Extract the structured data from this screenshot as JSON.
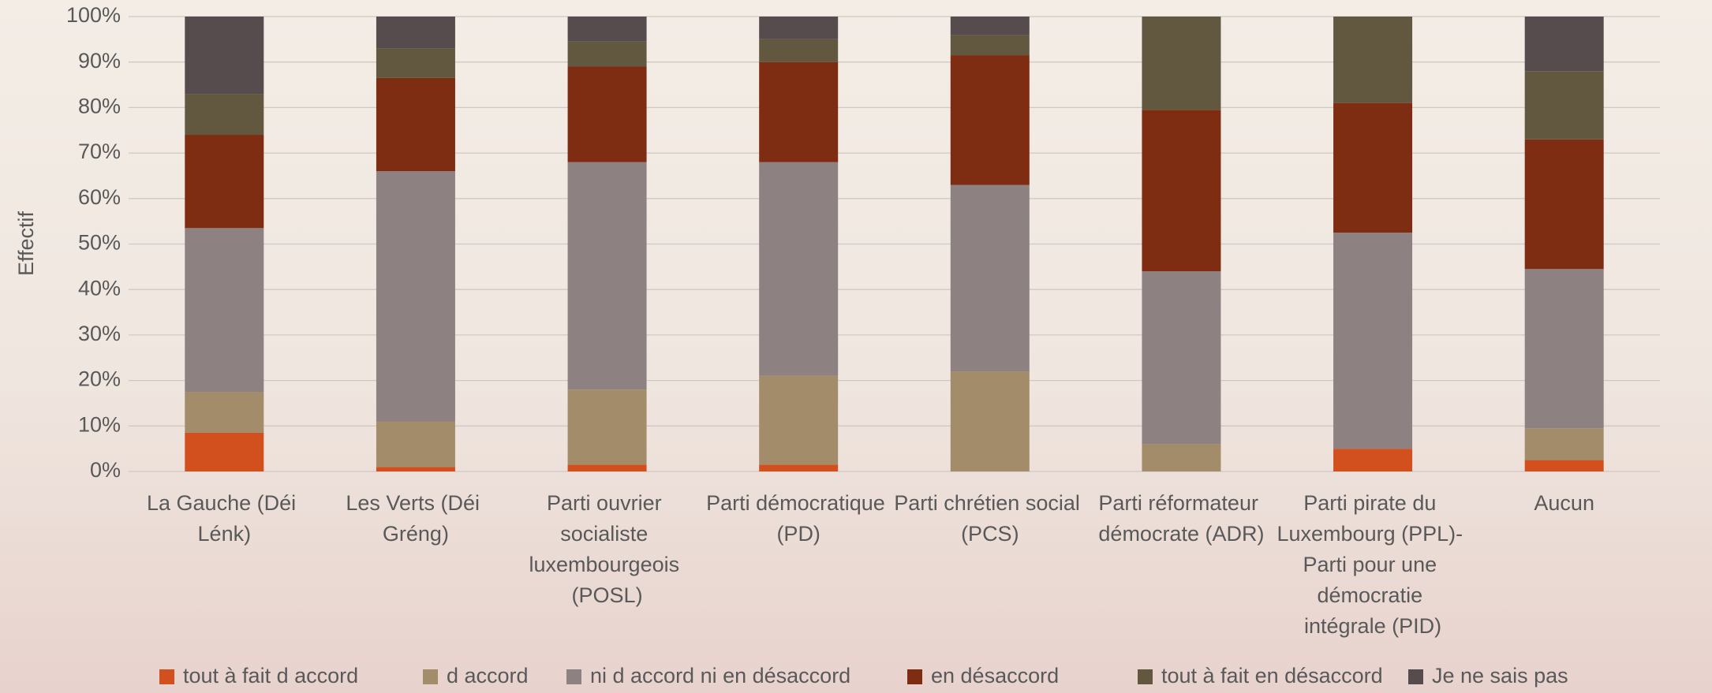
{
  "chart_data": {
    "type": "stacked_bar_100",
    "y_label": "Effectif",
    "categories": [
      "La Gauche (Déi Lénk)",
      "Les Verts (Déi Gréng)",
      "Parti ouvrier socialiste luxembourgeois (POSL)",
      "Parti démocratique (PD)",
      "Parti chrétien social (PCS)",
      "Parti réformateur démocrate (ADR)",
      "Parti pirate du Luxembourg (PPL)- Parti pour une démocratie intégrale (PID)",
      "Aucun"
    ],
    "series": [
      {
        "name": "tout à fait d accord",
        "color": "#d24f1e",
        "values": [
          8.5,
          1,
          1.5,
          1.5,
          0,
          0,
          5,
          2.5
        ]
      },
      {
        "name": "d accord",
        "color": "#a38c6a",
        "values": [
          9,
          10,
          16.5,
          19.5,
          22,
          6,
          0,
          7
        ]
      },
      {
        "name": "ni d accord ni en désaccord",
        "color": "#8d8181",
        "values": [
          36,
          55,
          50,
          47,
          41,
          38,
          47.5,
          35
        ]
      },
      {
        "name": "en désaccord",
        "color": "#7e2c12",
        "values": [
          20.5,
          20.5,
          21,
          22,
          28.5,
          35.5,
          28.5,
          28.5
        ]
      },
      {
        "name": "tout à fait en désaccord",
        "color": "#625840",
        "values": [
          9,
          6.5,
          5.5,
          5,
          4.5,
          20.5,
          19,
          15
        ]
      },
      {
        "name": "Je ne sais pas",
        "color": "#564c4e",
        "values": [
          17,
          7,
          5.5,
          5,
          4,
          0,
          0,
          12
        ]
      }
    ],
    "ylim": [
      0,
      100
    ],
    "yticks": [
      {
        "value": 0,
        "label": "0%"
      },
      {
        "value": 10,
        "label": "10%"
      },
      {
        "value": 20,
        "label": "20%"
      },
      {
        "value": 30,
        "label": "30%"
      },
      {
        "value": 40,
        "label": "40%"
      },
      {
        "value": 50,
        "label": "50%"
      },
      {
        "value": 60,
        "label": "60%"
      },
      {
        "value": 70,
        "label": "70%"
      },
      {
        "value": 80,
        "label": "80%"
      },
      {
        "value": 90,
        "label": "90%"
      },
      {
        "value": 100,
        "label": "100%"
      }
    ],
    "grid": true,
    "legend": "bottom"
  }
}
